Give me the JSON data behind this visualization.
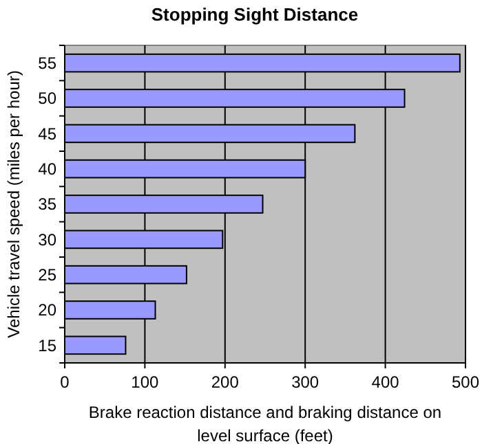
{
  "chart_data": {
    "type": "bar",
    "orientation": "horizontal",
    "title": "Stopping Sight Distance",
    "xlabel": "Brake reaction distance and braking distance on level surface (feet)",
    "ylabel": "Vehicle travel speed (miles per hour)",
    "categories": [
      "55",
      "50",
      "45",
      "40",
      "35",
      "30",
      "25",
      "20",
      "15"
    ],
    "values": [
      493,
      424,
      362,
      300,
      247,
      197,
      152,
      113,
      76
    ],
    "color": "#9999ff",
    "xlim": [
      0,
      500
    ],
    "xticks": [
      0,
      100,
      200,
      300,
      400,
      500
    ],
    "grid": "x"
  }
}
